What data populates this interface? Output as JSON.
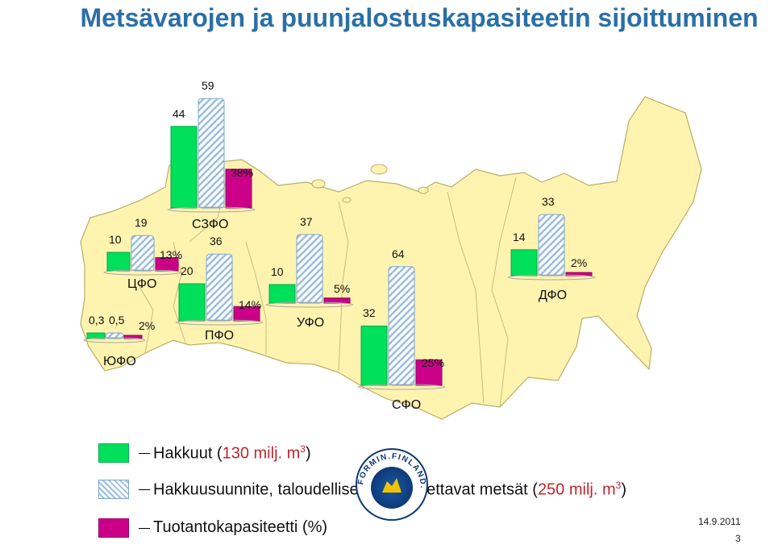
{
  "title": "Metsävarojen ja puunjalostuskapasiteetin sijoittuminen",
  "chart_data": {
    "type": "bar",
    "series": [
      {
        "name": "Hakkuut (130 milj. m3)",
        "color": "#00e05a"
      },
      {
        "name": "Hakkuusuunnite, taloudellisesti saavutettavat metsät (250 milj. m3)",
        "color": "#9bbde0"
      },
      {
        "name": "Tuotantokapasiteetti (%)",
        "color": "#cc0088"
      }
    ],
    "regions": [
      {
        "name": "СЗФО",
        "hakkuut": 44,
        "hakkuusuunnite": 59,
        "tuotantokapasiteetti": "38%"
      },
      {
        "name": "ЦФО",
        "hakkuut": 10,
        "hakkuusuunnite": 19,
        "tuotantokapasiteetti": "13%"
      },
      {
        "name": "ЮФО",
        "hakkuut": "0,3",
        "hakkuusuunnite": "0,5",
        "tuotantokapasiteetti": "2%"
      },
      {
        "name": "ПФО",
        "hakkuut": 20,
        "hakkuusuunnite": 36,
        "tuotantokapasiteetti": "14%"
      },
      {
        "name": "УФО",
        "hakkuut": 10,
        "hakkuusuunnite": 37,
        "tuotantokapasiteetti": "5%"
      },
      {
        "name": "СФО",
        "hakkuut": 32,
        "hakkuusuunnite": 64,
        "tuotantokapasiteetti": "25%"
      },
      {
        "name": "ДФО",
        "hakkuut": 14,
        "hakkuusuunnite": 33,
        "tuotantokapasiteetti": "2%"
      }
    ],
    "legend_position": "bottom-left"
  },
  "legend": {
    "hakkuut_text": "Hakkuut (",
    "hakkuut_num": "130 milj. m",
    "hakkuut_close": ")",
    "suunnite_text": "Hakkuusuunnite, taloudellisesti saavutettavat metsät (",
    "suunnite_num": "250 milj. m",
    "suunnite_close": ")",
    "sup3": "3",
    "tuotanto_text": "Tuotantokapasiteetti (%)"
  },
  "logo_text": "FORMIN.FINLAND.FI",
  "footer": {
    "date": "14.9.2011",
    "page": "3"
  }
}
